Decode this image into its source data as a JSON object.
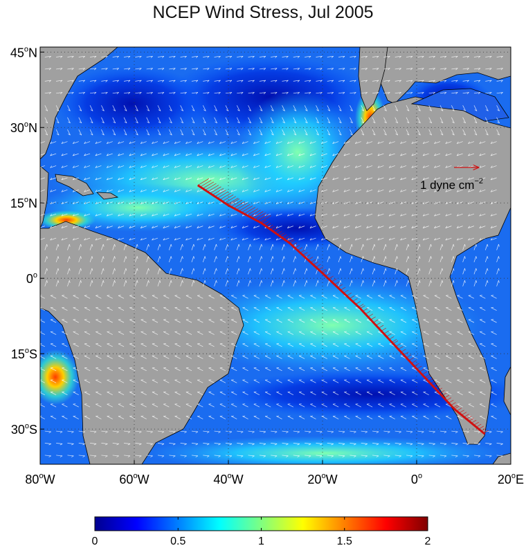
{
  "title": "NCEP Wind Stress, Jul 2005",
  "map": {
    "projection": "equirectangular",
    "lon_range": [
      -80,
      20
    ],
    "lat_range": [
      -37,
      46
    ],
    "grid": "dotted",
    "land_color": "#a0a0a0",
    "lat_ticks": [
      {
        "value": 45,
        "label": "45",
        "hemi": "N"
      },
      {
        "value": 30,
        "label": "30",
        "hemi": "N"
      },
      {
        "value": 15,
        "label": "15",
        "hemi": "N"
      },
      {
        "value": 0,
        "label": "0",
        "hemi": ""
      },
      {
        "value": -15,
        "label": "15",
        "hemi": "S"
      },
      {
        "value": -30,
        "label": "30",
        "hemi": "S"
      }
    ],
    "lon_ticks": [
      {
        "value": -80,
        "label": "80",
        "hemi": "W"
      },
      {
        "value": -60,
        "label": "60",
        "hemi": "W"
      },
      {
        "value": -40,
        "label": "40",
        "hemi": "W"
      },
      {
        "value": -20,
        "label": "20",
        "hemi": "W"
      },
      {
        "value": 0,
        "label": "0",
        "hemi": ""
      },
      {
        "value": 20,
        "label": "20",
        "hemi": "E"
      }
    ],
    "degree_symbol": "o",
    "arrow_color": "#ffffff",
    "track_color": "#d01010",
    "track_points": [
      {
        "lon": -46.5,
        "lat": 18.5
      },
      {
        "lon": -40,
        "lat": 14.5
      },
      {
        "lon": -33,
        "lat": 11
      },
      {
        "lon": -27,
        "lat": 7
      },
      {
        "lon": -20,
        "lat": 1
      },
      {
        "lon": -12,
        "lat": -6
      },
      {
        "lon": -5,
        "lat": -13
      },
      {
        "lon": 2,
        "lat": -20
      },
      {
        "lon": 8,
        "lat": -26
      },
      {
        "lon": 14.5,
        "lat": -31
      }
    ],
    "reference_vector": {
      "label": "1 dyne cm",
      "exponent": "−2",
      "lon": 9,
      "lat": 25,
      "color": "#d01010"
    }
  },
  "colorbar": {
    "min": 0,
    "max": 2,
    "ticks": [
      "0",
      "0.5",
      "1",
      "1.5",
      "2"
    ],
    "colormap": "jet"
  }
}
